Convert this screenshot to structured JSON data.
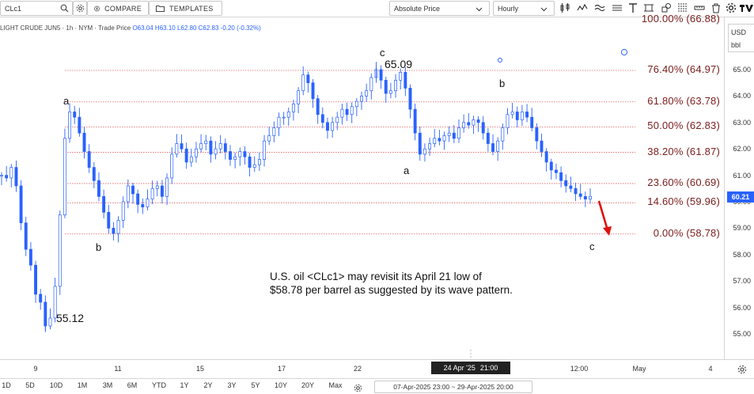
{
  "toolbar": {
    "symbol": "CLc1",
    "compare_label": "COMPARE",
    "templates_label": "TEMPLATES",
    "price_mode": "Absolute Price",
    "interval": "Hourly"
  },
  "legend": {
    "name": "LIGHT CRUDE JUN5 · 1h · NYM · Trade Price",
    "ohlc": "O63.04 H63.10 L62.80 C62.83 -0.20 (-0.32%)"
  },
  "axis_right": {
    "currency": "USD",
    "unit": "bbl",
    "labels": [
      "65.00",
      "64.00",
      "63.00",
      "62.00",
      "61.00",
      "60.00",
      "59.00",
      "58.00",
      "57.00",
      "56.00",
      "55.00"
    ],
    "last_price": "60.21"
  },
  "time_axis": {
    "labels": [
      "9",
      "11",
      "15",
      "17",
      "22",
      "12:00",
      "May",
      "4"
    ],
    "crosshair_date": "24 Apr '25",
    "crosshair_time": "21:00"
  },
  "bottom": {
    "ranges": [
      "1D",
      "5D",
      "10D",
      "1M",
      "3M",
      "6M",
      "YTD",
      "1Y",
      "2Y",
      "3Y",
      "5Y",
      "10Y",
      "20Y",
      "Max"
    ],
    "date_range": "07-Apr-2025 23:00  ~  29-Apr-2025 20:00"
  },
  "fib_levels": [
    {
      "label": "100.00% (66.88)",
      "price": 66.88
    },
    {
      "label": "76.40% (64.97)",
      "price": 64.97
    },
    {
      "label": "61.80% (63.78)",
      "price": 63.78
    },
    {
      "label": "50.00% (62.83)",
      "price": 62.83
    },
    {
      "label": "38.20% (61.87)",
      "price": 61.87
    },
    {
      "label": "23.60% (60.69)",
      "price": 60.69
    },
    {
      "label": "14.60% (59.96)",
      "price": 59.96
    },
    {
      "label": "0.00% (58.78)",
      "price": 58.78
    }
  ],
  "wave_labels": {
    "a1": "a",
    "b1": "b",
    "c1": "c",
    "a2": "a",
    "b2": "b",
    "c2": "c",
    "high_value": "65.09",
    "low_value": "55.12"
  },
  "note": {
    "line1": "U.S. oil <CLc1> may revisit its April 21 low of",
    "line2": "$58.78 per barrel as suggested by its wave pattern."
  },
  "colors": {
    "candles": "#2962ff",
    "fib_text": "#7b1d1d",
    "fib_line": "#e06060",
    "arrow": "#e01010"
  },
  "chart_data": {
    "type": "line",
    "series": [
      {
        "values": [
          61.0,
          60.9,
          61.3,
          60.6,
          59.2,
          58.2,
          57.6,
          56.5,
          56.2,
          55.3,
          55.6,
          56.8,
          59.5,
          62.4,
          63.4,
          63.2,
          62.6,
          61.9,
          61.3,
          60.8,
          60.2,
          59.6,
          59.0,
          58.8,
          59.3,
          60.0,
          60.6,
          60.3,
          59.9,
          59.8,
          60.1,
          60.5,
          60.6,
          60.2,
          60.9,
          61.8,
          62.2,
          62.0,
          61.5,
          61.7,
          62.0,
          62.2,
          62.3,
          61.8,
          62.0,
          62.2,
          61.9,
          61.6,
          61.7,
          61.9,
          61.7,
          61.3,
          61.4,
          61.6,
          62.3,
          62.5,
          62.8,
          63.2,
          63.2,
          63.4,
          63.7,
          64.2,
          64.8,
          64.5,
          63.9,
          63.3,
          63.0,
          62.7,
          63.0,
          63.2,
          63.5,
          63.3,
          63.6,
          63.8,
          64.0,
          64.2,
          64.7,
          65.0,
          64.6,
          64.1,
          64.2,
          64.6,
          64.9,
          64.3,
          63.5,
          62.6,
          61.8,
          62.0,
          62.2,
          62.4,
          62.3,
          62.5,
          62.6,
          62.4,
          62.8,
          63.0,
          62.9,
          63.1,
          63.0,
          62.6,
          62.2,
          61.9,
          62.3,
          62.8,
          63.3,
          63.4,
          63.1,
          63.4,
          63.2,
          62.8,
          62.3,
          61.9,
          61.5,
          61.2,
          61.1,
          60.8,
          60.6,
          60.5,
          60.3,
          60.2,
          60.1,
          60.2
        ],
        "low_mark": 55.12,
        "high_mark": 65.09
      }
    ],
    "ylim": [
      54.3,
      67.0
    ],
    "y_ticks": [
      55,
      56,
      57,
      58,
      59,
      60,
      61,
      62,
      63,
      64,
      65
    ],
    "xlabel": "",
    "ylabel": "",
    "grid": false
  }
}
